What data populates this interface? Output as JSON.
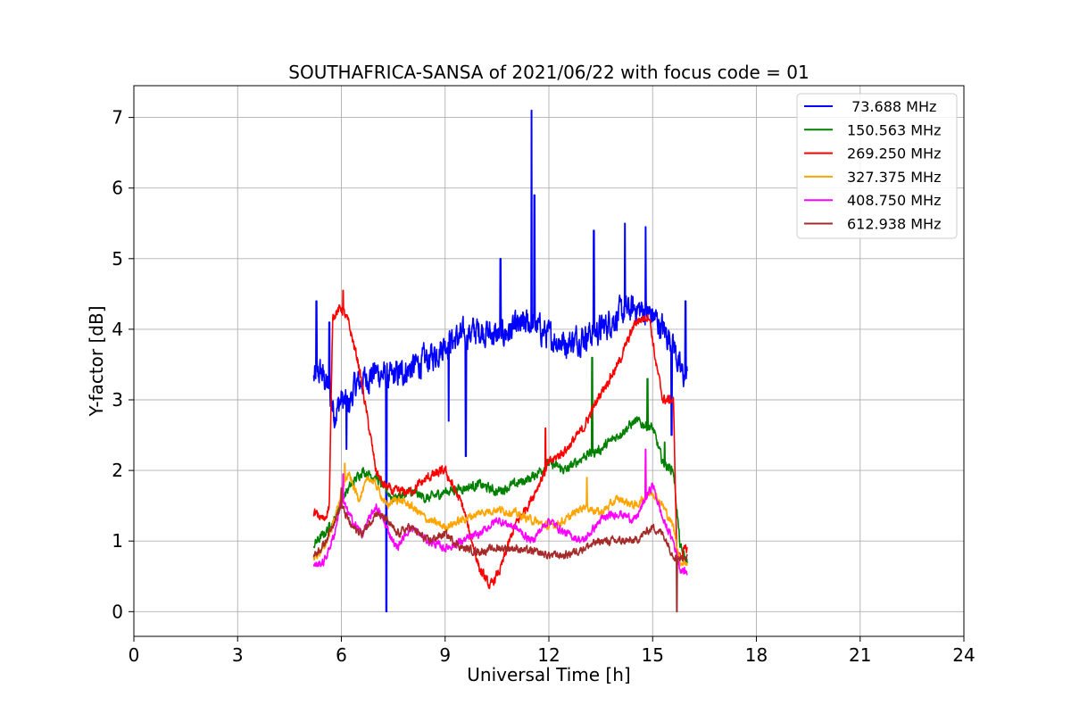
{
  "chart_data": {
    "type": "line",
    "title": "SOUTHAFRICA-SANSA of 2021/06/22 with focus code = 01",
    "xlabel": "Universal Time [h]",
    "ylabel": "Y-factor [dB]",
    "xlim": [
      0,
      24
    ],
    "ylim": [
      -0.35,
      7.45
    ],
    "xticks": [
      0,
      3,
      6,
      9,
      12,
      15,
      18,
      21,
      24
    ],
    "yticks": [
      0,
      1,
      2,
      3,
      4,
      5,
      6,
      7
    ],
    "grid": true,
    "legend_position": "top-right",
    "series": [
      {
        "name": " 73.688 MHz",
        "color": "#0000ff",
        "noise": 0.35,
        "x": [
          5.2,
          5.4,
          5.6,
          5.8,
          6.0,
          6.2,
          6.4,
          6.7,
          7.0,
          7.4,
          7.8,
          8.2,
          8.6,
          9.0,
          9.5,
          10.0,
          10.5,
          11.0,
          11.5,
          12.0,
          12.5,
          13.0,
          13.5,
          14.0,
          14.5,
          15.0,
          15.3,
          15.6,
          15.8,
          16.0
        ],
        "y": [
          3.3,
          3.4,
          3.2,
          2.8,
          3.0,
          2.9,
          3.2,
          3.3,
          3.4,
          3.3,
          3.4,
          3.5,
          3.6,
          3.8,
          3.9,
          4.0,
          3.9,
          4.0,
          4.1,
          3.9,
          3.8,
          3.9,
          4.0,
          4.2,
          4.3,
          4.2,
          4.0,
          3.8,
          3.4,
          3.3
        ],
        "spikes": [
          [
            5.28,
            4.4
          ],
          [
            5.65,
            4.1
          ],
          [
            6.15,
            2.3
          ],
          [
            7.3,
            0.0
          ],
          [
            9.1,
            2.7
          ],
          [
            9.6,
            2.2
          ],
          [
            10.6,
            5.0
          ],
          [
            11.5,
            7.1
          ],
          [
            11.58,
            5.9
          ],
          [
            13.3,
            5.4
          ],
          [
            14.2,
            5.5
          ],
          [
            14.8,
            5.45
          ],
          [
            15.55,
            2.5
          ],
          [
            15.95,
            4.4
          ]
        ]
      },
      {
        "name": "150.563 MHz",
        "color": "#008000",
        "noise": 0.12,
        "x": [
          5.2,
          5.5,
          5.8,
          6.0,
          6.3,
          6.6,
          7.0,
          7.5,
          8.0,
          8.5,
          9.0,
          9.5,
          10.0,
          10.5,
          11.0,
          11.5,
          12.0,
          12.5,
          13.0,
          13.5,
          14.0,
          14.5,
          15.0,
          15.3,
          15.6,
          15.8,
          16.0
        ],
        "y": [
          0.95,
          1.1,
          1.3,
          1.6,
          1.8,
          2.0,
          1.9,
          1.6,
          1.7,
          1.6,
          1.7,
          1.75,
          1.8,
          1.7,
          1.8,
          1.9,
          2.1,
          2.0,
          2.2,
          2.3,
          2.5,
          2.7,
          2.6,
          2.1,
          2.0,
          0.9,
          0.7
        ],
        "spikes": [
          [
            13.25,
            3.6
          ],
          [
            14.85,
            3.3
          ],
          [
            15.35,
            2.4
          ]
        ]
      },
      {
        "name": "269.250 MHz",
        "color": "#ff0000",
        "noise": 0.12,
        "x": [
          5.2,
          5.5,
          5.65,
          5.75,
          6.0,
          6.2,
          6.5,
          6.8,
          7.0,
          7.2,
          7.5,
          8.0,
          8.5,
          9.0,
          9.5,
          10.0,
          10.3,
          10.6,
          11.0,
          11.5,
          12.0,
          12.5,
          13.0,
          13.5,
          14.0,
          14.5,
          14.9,
          15.1,
          15.3,
          15.6,
          15.7,
          15.8,
          16.0
        ],
        "y": [
          1.4,
          1.3,
          1.5,
          4.2,
          4.3,
          4.1,
          3.5,
          2.6,
          2.0,
          1.8,
          1.7,
          1.7,
          1.9,
          2.0,
          1.5,
          0.6,
          0.35,
          0.6,
          1.2,
          1.6,
          2.1,
          2.3,
          2.6,
          3.1,
          3.5,
          4.1,
          4.2,
          3.5,
          3.0,
          3.0,
          0.8,
          0.8,
          0.9
        ],
        "spikes": [
          [
            6.05,
            4.55
          ],
          [
            11.9,
            2.6
          ]
        ]
      },
      {
        "name": "327.375 MHz",
        "color": "#ffa500",
        "noise": 0.1,
        "x": [
          5.2,
          5.5,
          5.8,
          6.0,
          6.2,
          6.5,
          6.8,
          7.0,
          7.3,
          7.6,
          8.0,
          8.5,
          9.0,
          9.5,
          10.0,
          10.5,
          11.0,
          11.5,
          12.0,
          12.5,
          13.0,
          13.5,
          14.0,
          14.5,
          15.0,
          15.3,
          15.6,
          15.8,
          16.0
        ],
        "y": [
          0.75,
          0.9,
          1.3,
          1.7,
          1.95,
          1.6,
          1.9,
          1.8,
          1.5,
          1.6,
          1.5,
          1.3,
          1.2,
          1.3,
          1.4,
          1.45,
          1.4,
          1.3,
          1.2,
          1.3,
          1.5,
          1.4,
          1.6,
          1.5,
          1.7,
          1.5,
          1.2,
          0.7,
          0.7
        ],
        "spikes": [
          [
            6.1,
            2.1
          ],
          [
            13.1,
            1.9
          ],
          [
            14.8,
            2.2
          ]
        ]
      },
      {
        "name": "408.750 MHz",
        "color": "#ff00ff",
        "noise": 0.1,
        "x": [
          5.2,
          5.5,
          5.8,
          6.0,
          6.3,
          6.6,
          7.0,
          7.3,
          7.6,
          8.0,
          8.5,
          9.0,
          9.5,
          10.0,
          10.5,
          11.0,
          11.5,
          12.0,
          12.5,
          13.0,
          13.5,
          14.0,
          14.5,
          14.8,
          15.0,
          15.3,
          15.6,
          15.8,
          16.0
        ],
        "y": [
          0.65,
          0.7,
          1.1,
          1.6,
          1.3,
          1.1,
          1.5,
          1.2,
          0.9,
          1.2,
          1.0,
          0.9,
          1.0,
          1.1,
          1.3,
          1.2,
          1.0,
          1.3,
          1.1,
          1.0,
          1.3,
          1.4,
          1.3,
          1.6,
          1.8,
          1.3,
          1.0,
          0.6,
          0.55
        ],
        "spikes": [
          [
            14.8,
            2.3
          ],
          [
            6.05,
            1.95
          ]
        ]
      },
      {
        "name": "612.938 MHz",
        "color": "#a52a2a",
        "noise": 0.1,
        "x": [
          5.2,
          5.5,
          5.8,
          6.0,
          6.3,
          6.6,
          7.0,
          7.3,
          7.6,
          8.0,
          8.5,
          9.0,
          9.5,
          10.0,
          10.5,
          11.0,
          11.5,
          12.0,
          12.5,
          13.0,
          13.5,
          14.0,
          14.5,
          15.0,
          15.3,
          15.6,
          15.8,
          16.0
        ],
        "y": [
          0.8,
          0.95,
          1.3,
          1.5,
          1.2,
          1.1,
          1.4,
          1.3,
          1.1,
          1.2,
          1.0,
          1.1,
          0.9,
          0.85,
          0.9,
          0.9,
          0.85,
          0.8,
          0.8,
          0.9,
          1.0,
          1.0,
          1.0,
          1.2,
          1.1,
          0.8,
          0.75,
          0.8
        ],
        "spikes": [
          [
            15.7,
            0.0
          ],
          [
            6.0,
            1.75
          ]
        ]
      }
    ]
  }
}
